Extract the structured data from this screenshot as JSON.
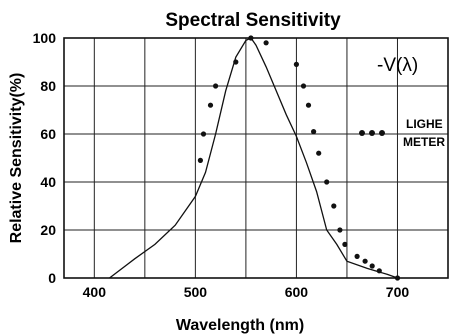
{
  "chart_data": {
    "type": "line",
    "title": "Spectral Sensitivity",
    "xlabel": "Wavelength (nm)",
    "ylabel": "Relative Sensitivity(%)",
    "xlim": [
      370,
      750
    ],
    "ylim": [
      0,
      100
    ],
    "xticks": [
      400,
      500,
      600,
      700
    ],
    "yticks": [
      0,
      20,
      40,
      60,
      80,
      100
    ],
    "grid": true,
    "series": [
      {
        "name": "V(λ)",
        "style": "line",
        "points": [
          [
            415,
            0
          ],
          [
            440,
            8
          ],
          [
            460,
            14
          ],
          [
            480,
            22
          ],
          [
            500,
            34
          ],
          [
            510,
            44
          ],
          [
            520,
            60
          ],
          [
            530,
            78
          ],
          [
            540,
            92
          ],
          [
            550,
            99
          ],
          [
            555,
            100
          ],
          [
            560,
            97
          ],
          [
            570,
            88
          ],
          [
            580,
            78
          ],
          [
            590,
            68
          ],
          [
            600,
            59
          ],
          [
            610,
            48
          ],
          [
            620,
            36
          ],
          [
            630,
            20
          ],
          [
            640,
            14
          ],
          [
            650,
            7
          ],
          [
            670,
            4
          ],
          [
            690,
            1.5
          ],
          [
            700,
            0
          ]
        ]
      },
      {
        "name": "LIGHE METER",
        "style": "dots",
        "points": [
          [
            505,
            49
          ],
          [
            508,
            60
          ],
          [
            515,
            72
          ],
          [
            520,
            80
          ],
          [
            540,
            90
          ],
          [
            555,
            100
          ],
          [
            570,
            98
          ],
          [
            600,
            89
          ],
          [
            607,
            80
          ],
          [
            612,
            72
          ],
          [
            617,
            61
          ],
          [
            622,
            52
          ],
          [
            630,
            40
          ],
          [
            637,
            30
          ],
          [
            643,
            20
          ],
          [
            648,
            14
          ],
          [
            660,
            9
          ],
          [
            668,
            7
          ],
          [
            675,
            5
          ],
          [
            682,
            3
          ],
          [
            700,
            0
          ]
        ]
      }
    ],
    "legend": {
      "position": "top-right",
      "line_prefix": "-",
      "line_text": "V(λ)",
      "dots_line1": "LIGHE",
      "dots_line2": "METER"
    }
  }
}
